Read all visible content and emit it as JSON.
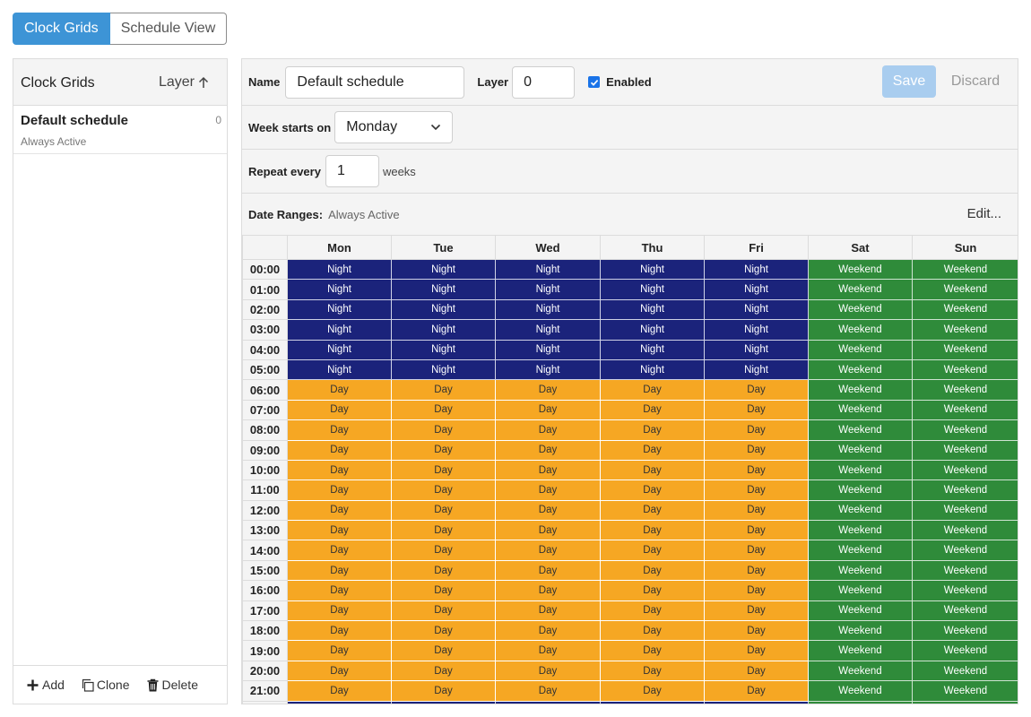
{
  "view_toggle": {
    "clock_grids": "Clock Grids",
    "schedule_view": "Schedule View"
  },
  "sidebar": {
    "title": "Clock Grids",
    "sort_label": "Layer",
    "items": [
      {
        "name": "Default schedule",
        "subtitle": "Always Active",
        "layer": "0"
      }
    ],
    "footer": {
      "add": "Add",
      "clone": "Clone",
      "delete": "Delete"
    }
  },
  "editor": {
    "name_label": "Name",
    "name_value": "Default schedule",
    "layer_label": "Layer",
    "layer_value": "0",
    "enabled_label": "Enabled",
    "enabled": true,
    "save_label": "Save",
    "discard_label": "Discard",
    "week_starts_label": "Week starts on",
    "week_starts_value": "Monday",
    "repeat_label": "Repeat every",
    "repeat_value": "1",
    "repeat_unit": "weeks",
    "date_ranges_label": "Date Ranges:",
    "date_ranges_value": "Always Active",
    "edit_label": "Edit..."
  },
  "grid": {
    "days": [
      "Mon",
      "Tue",
      "Wed",
      "Thu",
      "Fri",
      "Sat",
      "Sun"
    ],
    "rows": [
      {
        "time": "00:00",
        "cells": [
          "Night",
          "Night",
          "Night",
          "Night",
          "Night",
          "Weekend",
          "Weekend"
        ]
      },
      {
        "time": "01:00",
        "cells": [
          "Night",
          "Night",
          "Night",
          "Night",
          "Night",
          "Weekend",
          "Weekend"
        ]
      },
      {
        "time": "02:00",
        "cells": [
          "Night",
          "Night",
          "Night",
          "Night",
          "Night",
          "Weekend",
          "Weekend"
        ]
      },
      {
        "time": "03:00",
        "cells": [
          "Night",
          "Night",
          "Night",
          "Night",
          "Night",
          "Weekend",
          "Weekend"
        ]
      },
      {
        "time": "04:00",
        "cells": [
          "Night",
          "Night",
          "Night",
          "Night",
          "Night",
          "Weekend",
          "Weekend"
        ]
      },
      {
        "time": "05:00",
        "cells": [
          "Night",
          "Night",
          "Night",
          "Night",
          "Night",
          "Weekend",
          "Weekend"
        ]
      },
      {
        "time": "06:00",
        "cells": [
          "Day",
          "Day",
          "Day",
          "Day",
          "Day",
          "Weekend",
          "Weekend"
        ]
      },
      {
        "time": "07:00",
        "cells": [
          "Day",
          "Day",
          "Day",
          "Day",
          "Day",
          "Weekend",
          "Weekend"
        ]
      },
      {
        "time": "08:00",
        "cells": [
          "Day",
          "Day",
          "Day",
          "Day",
          "Day",
          "Weekend",
          "Weekend"
        ]
      },
      {
        "time": "09:00",
        "cells": [
          "Day",
          "Day",
          "Day",
          "Day",
          "Day",
          "Weekend",
          "Weekend"
        ]
      },
      {
        "time": "10:00",
        "cells": [
          "Day",
          "Day",
          "Day",
          "Day",
          "Day",
          "Weekend",
          "Weekend"
        ]
      },
      {
        "time": "11:00",
        "cells": [
          "Day",
          "Day",
          "Day",
          "Day",
          "Day",
          "Weekend",
          "Weekend"
        ]
      },
      {
        "time": "12:00",
        "cells": [
          "Day",
          "Day",
          "Day",
          "Day",
          "Day",
          "Weekend",
          "Weekend"
        ]
      },
      {
        "time": "13:00",
        "cells": [
          "Day",
          "Day",
          "Day",
          "Day",
          "Day",
          "Weekend",
          "Weekend"
        ]
      },
      {
        "time": "14:00",
        "cells": [
          "Day",
          "Day",
          "Day",
          "Day",
          "Day",
          "Weekend",
          "Weekend"
        ]
      },
      {
        "time": "15:00",
        "cells": [
          "Day",
          "Day",
          "Day",
          "Day",
          "Day",
          "Weekend",
          "Weekend"
        ]
      },
      {
        "time": "16:00",
        "cells": [
          "Day",
          "Day",
          "Day",
          "Day",
          "Day",
          "Weekend",
          "Weekend"
        ]
      },
      {
        "time": "17:00",
        "cells": [
          "Day",
          "Day",
          "Day",
          "Day",
          "Day",
          "Weekend",
          "Weekend"
        ]
      },
      {
        "time": "18:00",
        "cells": [
          "Day",
          "Day",
          "Day",
          "Day",
          "Day",
          "Weekend",
          "Weekend"
        ]
      },
      {
        "time": "19:00",
        "cells": [
          "Day",
          "Day",
          "Day",
          "Day",
          "Day",
          "Weekend",
          "Weekend"
        ]
      },
      {
        "time": "20:00",
        "cells": [
          "Day",
          "Day",
          "Day",
          "Day",
          "Day",
          "Weekend",
          "Weekend"
        ]
      },
      {
        "time": "21:00",
        "cells": [
          "Day",
          "Day",
          "Day",
          "Day",
          "Day",
          "Weekend",
          "Weekend"
        ]
      },
      {
        "time": "",
        "cells": [
          "",
          "",
          "",
          "",
          "",
          "",
          ""
        ],
        "fills": [
          "Night",
          "Night",
          "Night",
          "Night",
          "Night",
          "Weekend",
          "Weekend"
        ]
      }
    ],
    "colors": {
      "Night": "#1b237b",
      "Day": "#f6a723",
      "Weekend": "#2f8b3a"
    }
  }
}
